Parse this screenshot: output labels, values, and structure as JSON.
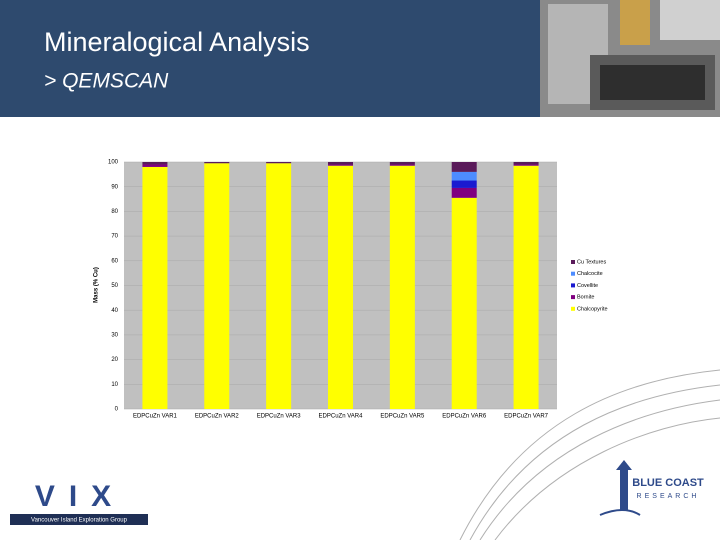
{
  "header": {
    "title": "Mineralogical Analysis",
    "subtitle": "> QEMSCAN"
  },
  "chart_data": {
    "type": "stacked_bar",
    "y_label": "Mass (% Cu)",
    "categories": [
      "EDPCuZn VAR1",
      "EDPCuZn VAR2",
      "EDPCuZn VAR3",
      "EDPCuZn VAR4",
      "EDPCuZn VAR5",
      "EDPCuZn VAR6",
      "EDPCuZn VAR7"
    ],
    "series": [
      {
        "name": "Chalcopyrite",
        "color": "#ffff00",
        "values": [
          98,
          99.5,
          99.5,
          98.5,
          98.5,
          85.5,
          98.5
        ]
      },
      {
        "name": "Bornite",
        "color": "#800080",
        "values": [
          1,
          0,
          0,
          0.5,
          0.5,
          4,
          0.5
        ]
      },
      {
        "name": "Covellite",
        "color": "#1a1ad0",
        "values": [
          0,
          0,
          0,
          0,
          0,
          3,
          0
        ]
      },
      {
        "name": "Chalcocite",
        "color": "#4d8cff",
        "values": [
          0,
          0,
          0,
          0,
          0,
          3.5,
          0
        ]
      },
      {
        "name": "Cu Textures",
        "color": "#5a1a5a",
        "values": [
          1,
          0.5,
          0.5,
          1,
          1,
          4,
          1
        ]
      }
    ],
    "ylim": [
      0,
      100
    ],
    "yticks": [
      0,
      10,
      20,
      30,
      40,
      50,
      60,
      70,
      80,
      90,
      100
    ],
    "grid": true
  },
  "logos": {
    "vix": "VIX",
    "vix_caption": "Vancouver Island Exploration Group",
    "bcr": "BLUE COAST",
    "bcr_sub": "RESEARCH"
  }
}
